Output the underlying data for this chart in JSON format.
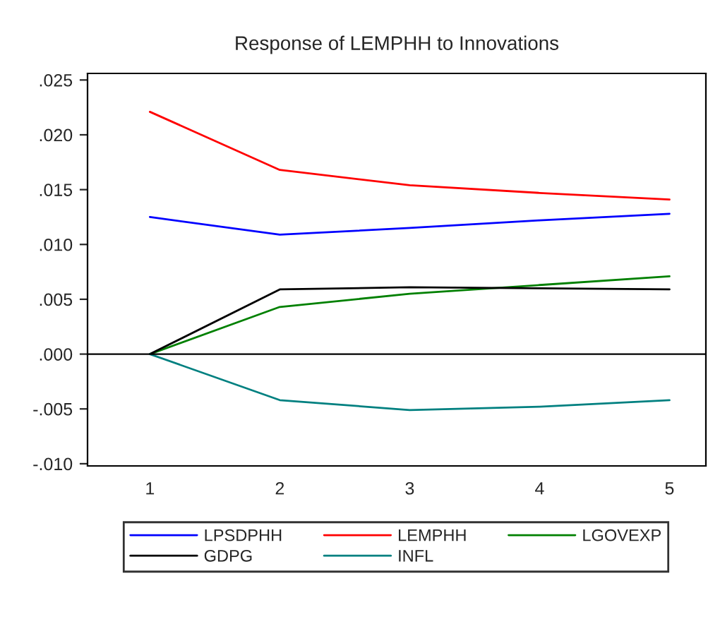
{
  "chart_data": {
    "type": "line",
    "title": "Response of LEMPHH to Innovations",
    "categories": [
      "1",
      "2",
      "3",
      "4",
      "5"
    ],
    "series": [
      {
        "name": "LPSDPHH",
        "color": "#0000ff",
        "values": [
          0.0125,
          0.0109,
          0.0115,
          0.0122,
          0.0128
        ]
      },
      {
        "name": "LEMPHH",
        "color": "#ff0000",
        "values": [
          0.0221,
          0.0168,
          0.0154,
          0.0147,
          0.0141
        ]
      },
      {
        "name": "LGOVEXP",
        "color": "#008000",
        "values": [
          0.0,
          0.0043,
          0.0055,
          0.0063,
          0.0071
        ]
      },
      {
        "name": "GDPG",
        "color": "#000000",
        "values": [
          0.0,
          0.0059,
          0.0061,
          0.006,
          0.0059
        ]
      },
      {
        "name": "INFL",
        "color": "#008080",
        "values": [
          0.0,
          -0.0042,
          -0.0051,
          -0.0048,
          -0.0042
        ]
      }
    ],
    "ylim": [
      -0.0102,
      0.0256
    ],
    "yticks": [
      {
        "value": -0.01,
        "label": "-.010"
      },
      {
        "value": -0.005,
        "label": "-.005"
      },
      {
        "value": 0.0,
        "label": ".000"
      },
      {
        "value": 0.005,
        "label": ".005"
      },
      {
        "value": 0.01,
        "label": ".010"
      },
      {
        "value": 0.015,
        "label": ".015"
      },
      {
        "value": 0.02,
        "label": ".020"
      },
      {
        "value": 0.025,
        "label": ".025"
      }
    ],
    "ref_lines": [
      {
        "axis": "y",
        "value": 0.0,
        "color": "#000000"
      }
    ],
    "grid": false,
    "legend": "bottom",
    "marker": "none",
    "line_style": "solid"
  }
}
